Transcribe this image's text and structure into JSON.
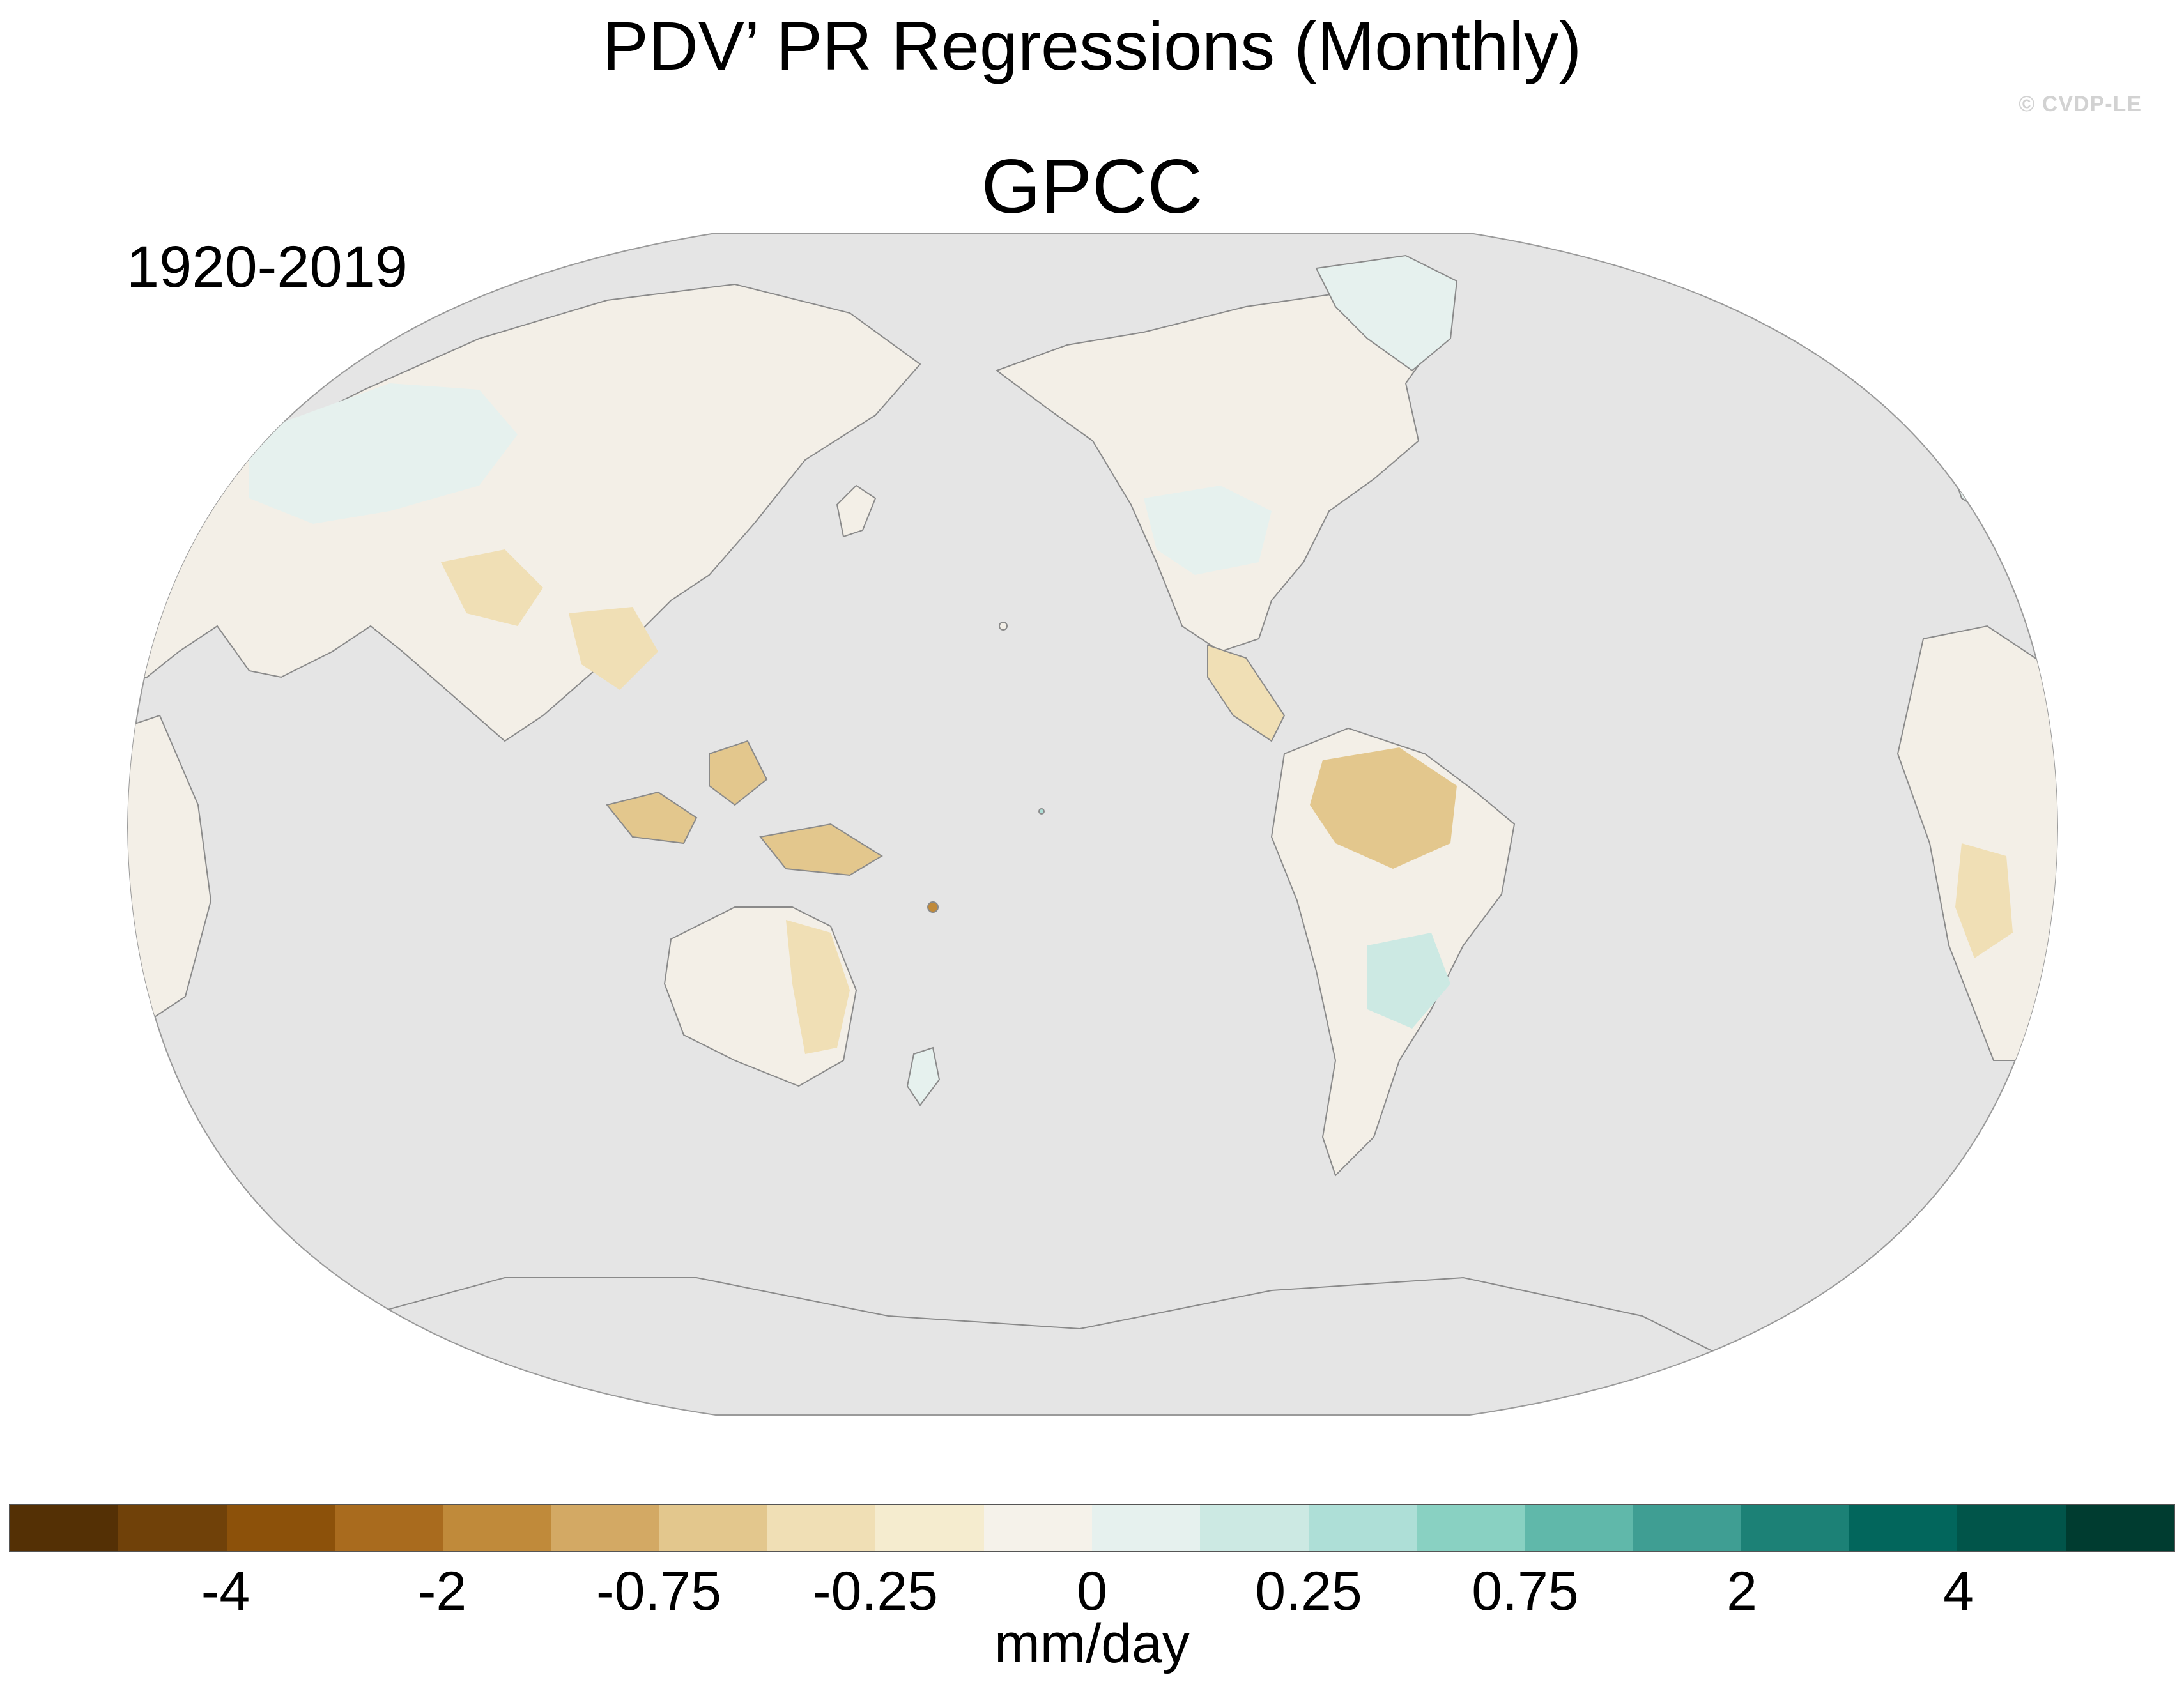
{
  "title": "PDV’ PR Regressions (Monthly)",
  "subtitle": "GPCC",
  "period": "1920-2019",
  "credit": "© CVDP-LE",
  "colorbar": {
    "colors": [
      "#543005",
      "#704109",
      "#8c510a",
      "#a96b1e",
      "#c08a3a",
      "#d3a964",
      "#e3c78d",
      "#f0dfb5",
      "#f5eccf",
      "#f5f2ea",
      "#e6f1ee",
      "#cce9e3",
      "#aedfd7",
      "#89d1c2",
      "#60b8aa",
      "#3f9e93",
      "#1c8176",
      "#02665c",
      "#01554a",
      "#003c30"
    ],
    "tick_labels": [
      "-4",
      "-2",
      "-0.75",
      "-0.25",
      "0",
      "0.25",
      "0.75",
      "2",
      "4"
    ],
    "units": "mm/day"
  },
  "map": {
    "projection": "Winkel-like (Pacific-centered)",
    "ocean_color": "#e5e5e5",
    "coast_color": "#8a8a8a"
  }
}
